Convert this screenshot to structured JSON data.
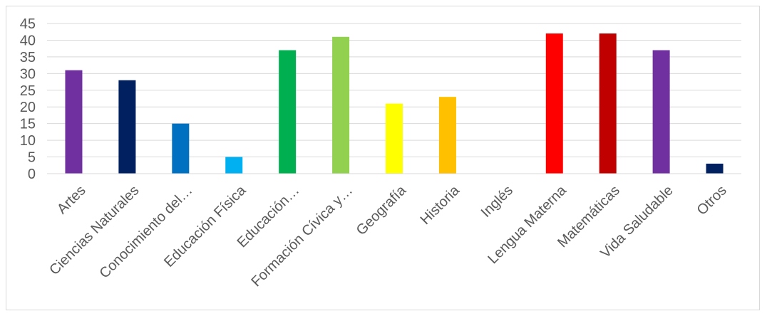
{
  "chart_data": {
    "type": "bar",
    "categories": [
      "Artes",
      "Ciencias Naturales",
      "Conocimiento del…",
      "Educación Física",
      "Educación…",
      "Formación Cívica y…",
      "Geografía",
      "Historia",
      "Inglés",
      "Lengua Materna",
      "Matemáticas",
      "Vida Saludable",
      "Otros"
    ],
    "values": [
      31,
      28,
      15,
      5,
      37,
      41,
      21,
      23,
      0,
      42,
      42,
      37,
      3
    ],
    "colors": [
      "#7030a0",
      "#002060",
      "#0070c0",
      "#00b0f0",
      "#00b050",
      "#92d050",
      "#ffff00",
      "#ffc000",
      "#ffffff",
      "#ff0000",
      "#c00000",
      "#7030a0",
      "#002060"
    ],
    "ylim": [
      0,
      45
    ],
    "yticks": [
      "0",
      "5",
      "10",
      "15",
      "20",
      "25",
      "30",
      "35",
      "40",
      "45"
    ],
    "grid": true,
    "legend": "none"
  }
}
